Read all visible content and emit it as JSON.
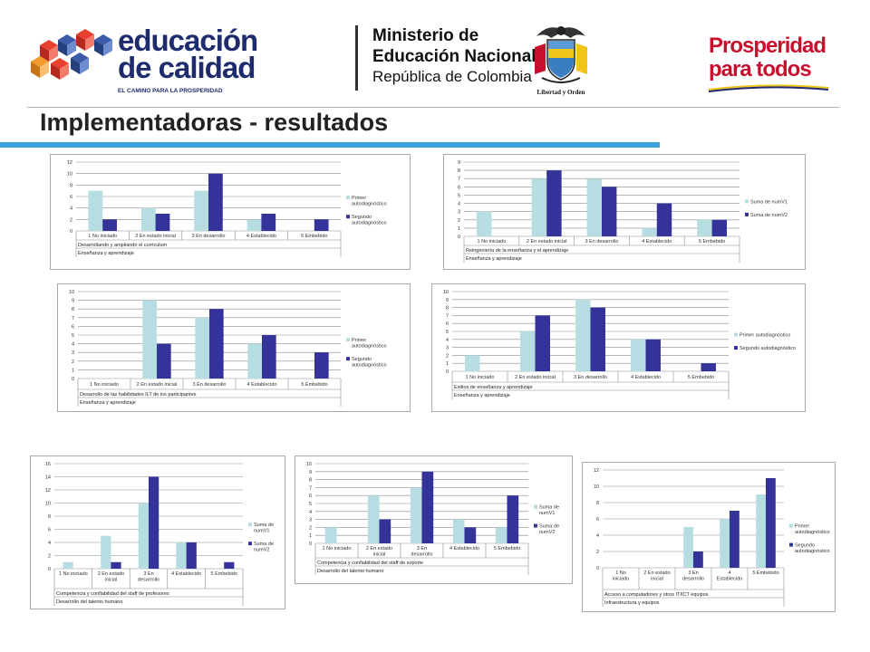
{
  "header": {
    "logo_education": {
      "line1": "educación",
      "line2": "de calidad",
      "tagline": "EL CAMINO PARA LA PROSPERIDAD"
    },
    "ministry": {
      "line1": "Ministerio de",
      "line2": "Educación Nacional",
      "line3": "República de Colombia",
      "motto": "Libertad y Orden"
    },
    "prosperity": {
      "line1": "Prosperidad",
      "line2": "para todos"
    },
    "colors": {
      "navy": "#1e2c6e",
      "accent_blue": "#3ea0dc",
      "red": "#c8102e",
      "series1": "#b6dde1",
      "series2": "#333399"
    }
  },
  "page": {
    "title": "Implementadoras - resultados"
  },
  "chart_data": [
    {
      "type": "bar",
      "categories": [
        "1 No iniciado",
        "2 En estado inicial",
        "3 En desarrollo",
        "4 Establecido",
        "5 Embebido"
      ],
      "series": [
        {
          "name": "Primer autodiagnóstico",
          "values": [
            7,
            4,
            7,
            2,
            0
          ]
        },
        {
          "name": "Segundo autodiagnóstico",
          "values": [
            2,
            3,
            10,
            3,
            2
          ]
        }
      ],
      "ylim": [
        0,
        12
      ],
      "ystep": 2,
      "sublabel": "Desarrollando y ampliando el curriculum",
      "group": "Enseñanza y aprendizaje",
      "legend": "right",
      "grid": true
    },
    {
      "type": "bar",
      "categories": [
        "1 No iniciado",
        "2 En estado inicial",
        "3 En desarrollo",
        "4 Establecido",
        "5 Embebido"
      ],
      "series": [
        {
          "name": "Suma de numV1",
          "values": [
            3,
            7,
            7,
            1,
            2
          ]
        },
        {
          "name": "Suma de numV2",
          "values": [
            0,
            8,
            6,
            4,
            2
          ]
        }
      ],
      "ylim": [
        0,
        9
      ],
      "ystep": 1,
      "sublabel": "Reingeniería de la enseñanza y el aprendizaje",
      "group": "Enseñanza y aprendizaje",
      "legend": "right",
      "grid": true
    },
    {
      "type": "bar",
      "categories": [
        "1 No iniciado",
        "2 En estado inicial",
        "3 En desarrollo",
        "4 Establecido",
        "5 Embebido"
      ],
      "series": [
        {
          "name": "Primer autodiagnóstico",
          "values": [
            0,
            9,
            7,
            4,
            0
          ]
        },
        {
          "name": "Segundo autodiagnóstico",
          "values": [
            0,
            4,
            8,
            5,
            3
          ]
        }
      ],
      "ylim": [
        0,
        10
      ],
      "ystep": 1,
      "sublabel": "Desarrollo de las habilidades ILT de los participantes",
      "group": "Enseñanza y aprendizaje",
      "legend": "right",
      "grid": true
    },
    {
      "type": "bar",
      "categories": [
        "1 No iniciado",
        "2 En estado inicial",
        "3 En desarrollo",
        "4 Establecido",
        "5 Embebido"
      ],
      "series": [
        {
          "name": "Primer autodiagnóstico",
          "values": [
            2,
            5,
            9,
            4,
            0
          ]
        },
        {
          "name": "Segundo autodiagnóstico",
          "values": [
            0,
            7,
            8,
            4,
            1
          ]
        }
      ],
      "ylim": [
        0,
        10
      ],
      "ystep": 1,
      "sublabel": "Estilos de enseñanza y aprendizaje",
      "group": "Enseñanza y aprendizaje",
      "legend": "right",
      "grid": true
    },
    {
      "type": "bar",
      "categories": [
        "1 No iniciado",
        "2 En estado inicial",
        "3 En desarrollo",
        "4 Establecido",
        "5 Embebido"
      ],
      "series": [
        {
          "name": "Suma de numV1",
          "values": [
            1,
            5,
            10,
            4,
            0
          ]
        },
        {
          "name": "Suma de numV2",
          "values": [
            0,
            1,
            14,
            4,
            1
          ]
        }
      ],
      "ylim": [
        0,
        16
      ],
      "ystep": 2,
      "sublabel": "Competencia y confiabilidad del staff de profesores",
      "group": "Desarrollo del talento humano",
      "legend": "right",
      "grid": true
    },
    {
      "type": "bar",
      "categories": [
        "1 No iniciado",
        "2 En estado inicial",
        "3 En desarrollo",
        "4 Establecido",
        "5 Embebido"
      ],
      "series": [
        {
          "name": "Suma de numV1",
          "values": [
            2,
            6,
            7,
            3,
            2
          ]
        },
        {
          "name": "Suma de numV2",
          "values": [
            0,
            3,
            9,
            2,
            6
          ]
        }
      ],
      "ylim": [
        0,
        10
      ],
      "ystep": 1,
      "sublabel": "Competencia y confiabilidad del staff de soporte",
      "group": "Desarrollo del talento humano",
      "legend": "right",
      "grid": true
    },
    {
      "type": "bar",
      "categories": [
        "1 No iniciado",
        "2 En estado inicial",
        "3 En desarrollo",
        "4 Establecido",
        "5 Embebido"
      ],
      "series": [
        {
          "name": "Primer autodiagnóstico",
          "values": [
            0,
            0,
            5,
            6,
            9
          ]
        },
        {
          "name": "Segundo autodiagnóstico",
          "values": [
            0,
            0,
            2,
            7,
            11
          ]
        }
      ],
      "ylim": [
        0,
        12
      ],
      "ystep": 2,
      "sublabel": "Acceso a computadores y otros IT/ICT equipos",
      "group": "Infraestructura y equipos",
      "legend": "right",
      "grid": true
    }
  ]
}
